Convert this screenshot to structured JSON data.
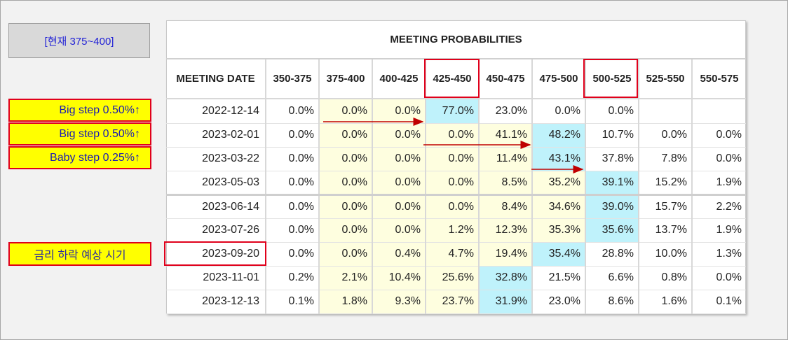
{
  "current_range": "[현재 375~400]",
  "labels": [
    "Big step 0.50%↑",
    "Big step 0.50%↑",
    "Baby step 0.25%↑",
    "금리 하락 예상 시기"
  ],
  "table": {
    "title": "MEETING PROBABILITIES",
    "headers": [
      "MEETING DATE",
      "350-375",
      "375-400",
      "400-425",
      "425-450",
      "450-475",
      "475-500",
      "500-525",
      "525-550",
      "550-575"
    ],
    "rows": [
      {
        "date": "2022-12-14",
        "cells": [
          "0.0%",
          "0.0%",
          "0.0%",
          "77.0%",
          "23.0%",
          "0.0%",
          "0.0%",
          "",
          ""
        ]
      },
      {
        "date": "2023-02-01",
        "cells": [
          "0.0%",
          "0.0%",
          "0.0%",
          "0.0%",
          "41.1%",
          "48.2%",
          "10.7%",
          "0.0%",
          "0.0%"
        ]
      },
      {
        "date": "2023-03-22",
        "cells": [
          "0.0%",
          "0.0%",
          "0.0%",
          "0.0%",
          "11.4%",
          "43.1%",
          "37.8%",
          "7.8%",
          "0.0%"
        ]
      },
      {
        "date": "2023-05-03",
        "cells": [
          "0.0%",
          "0.0%",
          "0.0%",
          "0.0%",
          "8.5%",
          "35.2%",
          "39.1%",
          "15.2%",
          "1.9%"
        ]
      },
      {
        "date": "2023-06-14",
        "cells": [
          "0.0%",
          "0.0%",
          "0.0%",
          "0.0%",
          "8.4%",
          "34.6%",
          "39.0%",
          "15.7%",
          "2.2%"
        ]
      },
      {
        "date": "2023-07-26",
        "cells": [
          "0.0%",
          "0.0%",
          "0.0%",
          "1.2%",
          "12.3%",
          "35.3%",
          "35.6%",
          "13.7%",
          "1.9%"
        ]
      },
      {
        "date": "2023-09-20",
        "cells": [
          "0.0%",
          "0.0%",
          "0.4%",
          "4.7%",
          "19.4%",
          "35.4%",
          "28.8%",
          "10.0%",
          "1.3%"
        ]
      },
      {
        "date": "2023-11-01",
        "cells": [
          "0.2%",
          "2.1%",
          "10.4%",
          "25.6%",
          "32.8%",
          "21.5%",
          "6.6%",
          "0.8%",
          "0.0%"
        ]
      },
      {
        "date": "2023-12-13",
        "cells": [
          "0.1%",
          "1.8%",
          "9.3%",
          "23.7%",
          "31.9%",
          "23.0%",
          "8.6%",
          "1.6%",
          "0.1%"
        ]
      }
    ]
  },
  "colors": {
    "highlight_yellow": "#fefedf",
    "highlight_cyan": "#bff2fb",
    "annotation_red": "#e0001b",
    "label_bg": "#ffff00"
  }
}
